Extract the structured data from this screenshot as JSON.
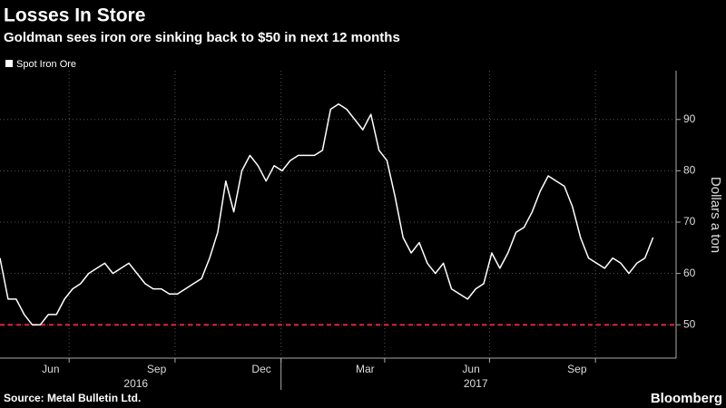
{
  "chart_data": {
    "type": "line",
    "title": "Losses In Store",
    "subtitle": "Goldman sees iron ore sinking back to $50 in next 12 months",
    "y_label": "Dollars a ton",
    "source": "Source: Metal Bulletin Ltd.",
    "brand": "Bloomberg",
    "x": [
      "2016-05-02",
      "2016-05-09",
      "2016-05-16",
      "2016-05-23",
      "2016-05-30",
      "2016-06-06",
      "2016-06-13",
      "2016-06-20",
      "2016-06-27",
      "2016-07-04",
      "2016-07-11",
      "2016-07-18",
      "2016-07-25",
      "2016-08-01",
      "2016-08-08",
      "2016-08-15",
      "2016-08-22",
      "2016-08-29",
      "2016-09-05",
      "2016-09-12",
      "2016-09-19",
      "2016-09-26",
      "2016-10-03",
      "2016-10-10",
      "2016-10-17",
      "2016-10-24",
      "2016-10-31",
      "2016-11-07",
      "2016-11-14",
      "2016-11-21",
      "2016-11-28",
      "2016-12-05",
      "2016-12-12",
      "2016-12-19",
      "2016-12-26",
      "2017-01-02",
      "2017-01-09",
      "2017-01-16",
      "2017-01-23",
      "2017-01-30",
      "2017-02-06",
      "2017-02-13",
      "2017-02-20",
      "2017-02-27",
      "2017-03-06",
      "2017-03-13",
      "2017-03-20",
      "2017-03-27",
      "2017-04-03",
      "2017-04-10",
      "2017-04-17",
      "2017-04-24",
      "2017-05-01",
      "2017-05-08",
      "2017-05-15",
      "2017-05-22",
      "2017-05-29",
      "2017-06-05",
      "2017-06-12",
      "2017-06-19",
      "2017-06-26",
      "2017-07-03",
      "2017-07-10",
      "2017-07-17",
      "2017-07-24",
      "2017-07-31",
      "2017-08-07",
      "2017-08-14",
      "2017-08-21",
      "2017-08-28",
      "2017-09-04",
      "2017-09-11",
      "2017-09-18",
      "2017-09-25",
      "2017-10-02",
      "2017-10-09",
      "2017-10-16",
      "2017-10-23",
      "2017-10-30",
      "2017-11-06",
      "2017-11-13",
      "2017-11-20"
    ],
    "series": [
      {
        "name": "Spot Iron Ore",
        "color": "#ffffff",
        "values": [
          63,
          55,
          55,
          52,
          50,
          50,
          52,
          52,
          55,
          57,
          58,
          60,
          61,
          62,
          60,
          61,
          62,
          60,
          58,
          57,
          57,
          56,
          56,
          57,
          58,
          59,
          63,
          68,
          78,
          72,
          80,
          83,
          81,
          78,
          81,
          80,
          82,
          83,
          83,
          83,
          84,
          92,
          93,
          92,
          90,
          88,
          91,
          84,
          82,
          75,
          67,
          64,
          66,
          62,
          60,
          62,
          57,
          56,
          55,
          57,
          58,
          64,
          61,
          64,
          68,
          69,
          72,
          76,
          79,
          78,
          77,
          73,
          67,
          63,
          62,
          61,
          63,
          62,
          60,
          62,
          63,
          67
        ]
      }
    ],
    "xlim": [
      "2016-05-02",
      "2017-12-10"
    ],
    "xticks": [
      {
        "value": "2016-06-15",
        "label": "Jun"
      },
      {
        "value": "2016-09-15",
        "label": "Sep"
      },
      {
        "value": "2016-12-15",
        "label": "Dec"
      },
      {
        "value": "2017-03-15",
        "label": "Mar"
      },
      {
        "value": "2017-06-15",
        "label": "Jun"
      },
      {
        "value": "2017-09-15",
        "label": "Sep"
      }
    ],
    "xgrid": [
      "2016-07-01",
      "2016-10-01",
      "2017-01-01",
      "2017-04-01",
      "2017-07-01",
      "2017-10-01"
    ],
    "year_labels": [
      {
        "value": "2016-08-28",
        "label": "2016"
      },
      {
        "value": "2017-06-19",
        "label": "2017"
      }
    ],
    "year_divider": "2017-01-01",
    "ylim": [
      43.5,
      99.5
    ],
    "yticks": [
      50,
      60,
      70,
      80,
      90
    ],
    "grid": true,
    "reference_line": {
      "value": 50,
      "color": "#e8203a"
    }
  }
}
